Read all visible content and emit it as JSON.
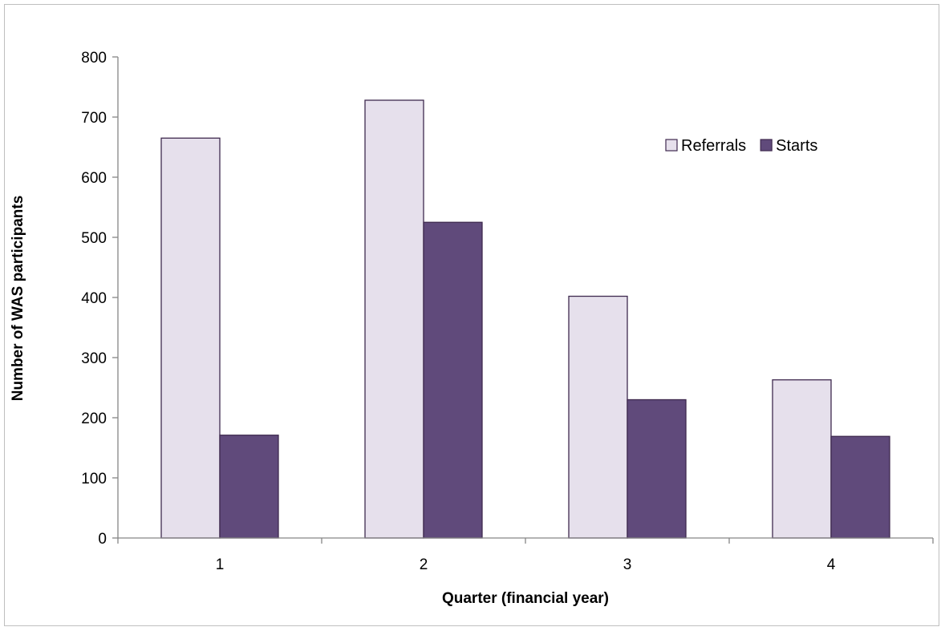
{
  "chart_data": {
    "type": "bar",
    "categories": [
      "1",
      "2",
      "3",
      "4"
    ],
    "series": [
      {
        "name": "Referrals",
        "values": [
          665,
          728,
          402,
          263
        ],
        "color": "#e6e0ec",
        "stroke": "#3f2a4f"
      },
      {
        "name": "Starts",
        "values": [
          171,
          525,
          230,
          169
        ],
        "color": "#604a7b",
        "stroke": "#3f2a4f"
      }
    ],
    "title": "",
    "xlabel": "Quarter (financial year)",
    "ylabel": "Number of WAS participants",
    "ylim": [
      0,
      800
    ],
    "yticks": [
      0,
      100,
      200,
      300,
      400,
      500,
      600,
      700,
      800
    ],
    "grid": false,
    "legend_position": "top-right"
  }
}
